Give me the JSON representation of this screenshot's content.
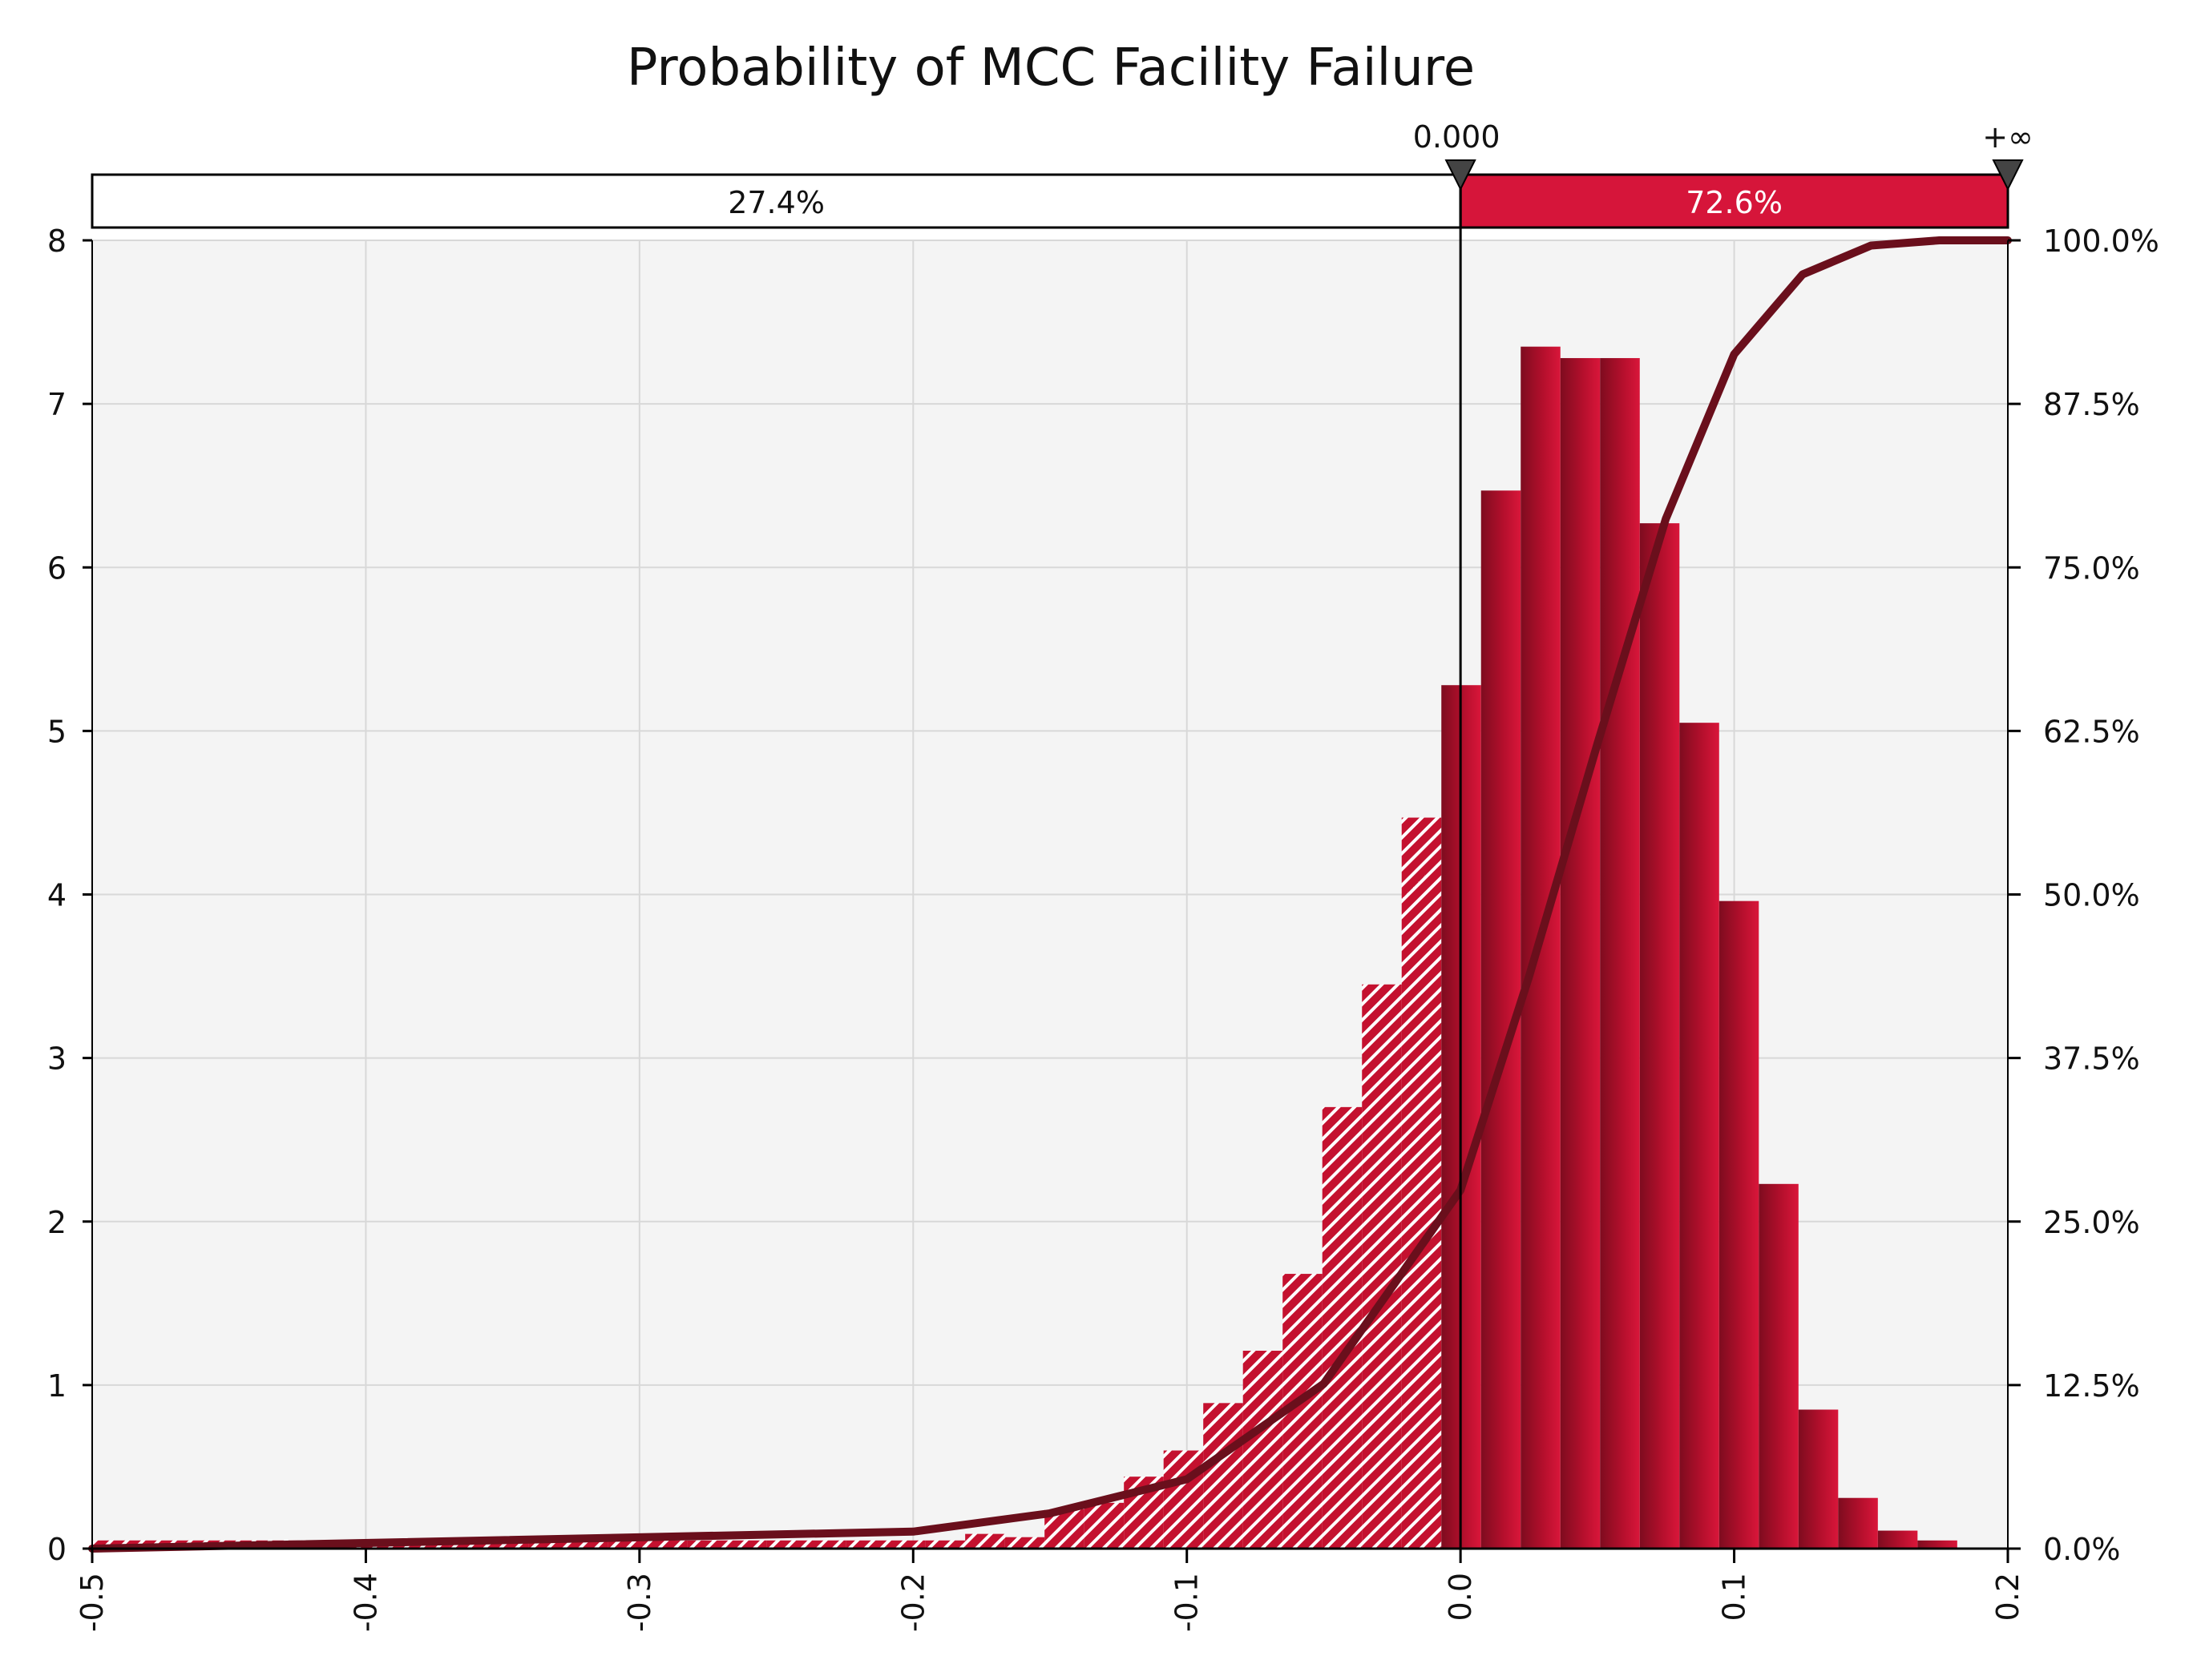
{
  "chart_data": {
    "type": "bar",
    "title": "Probability of MCC Facility Failure",
    "xlabel": "",
    "ylabel": "",
    "xlim": [
      -0.5,
      0.2
    ],
    "ylim": [
      0,
      8
    ],
    "y2lim": [
      0,
      1
    ],
    "grid": true,
    "x_ticks": [
      "-0.5",
      "-0.4",
      "-0.3",
      "-0.2",
      "-0.1",
      "0.0",
      "0.1",
      "0.2"
    ],
    "x_tick_values": [
      -0.5,
      -0.4,
      -0.3,
      -0.2,
      -0.1,
      0.0,
      0.1,
      0.2
    ],
    "y_ticks": [
      "0",
      "1",
      "2",
      "3",
      "4",
      "5",
      "6",
      "7",
      "8"
    ],
    "y_tick_values": [
      0,
      1,
      2,
      3,
      4,
      5,
      6,
      7,
      8
    ],
    "y2_ticks": [
      "0.0%",
      "12.5%",
      "25.0%",
      "37.5%",
      "50.0%",
      "62.5%",
      "75.0%",
      "87.5%",
      "100.0%"
    ],
    "y2_tick_values": [
      0,
      0.125,
      0.25,
      0.375,
      0.5,
      0.625,
      0.75,
      0.875,
      1.0
    ],
    "bin_width": 0.0145,
    "bins": [
      {
        "x": -0.5,
        "value": 0.05
      },
      {
        "x": -0.4855,
        "value": 0.05
      },
      {
        "x": -0.471,
        "value": 0.05
      },
      {
        "x": -0.4565,
        "value": 0.05
      },
      {
        "x": -0.442,
        "value": 0.05
      },
      {
        "x": -0.4275,
        "value": 0.05
      },
      {
        "x": -0.413,
        "value": 0.05
      },
      {
        "x": -0.3985,
        "value": 0.05
      },
      {
        "x": -0.384,
        "value": 0.05
      },
      {
        "x": -0.3695,
        "value": 0.05
      },
      {
        "x": -0.355,
        "value": 0.05
      },
      {
        "x": -0.3405,
        "value": 0.05
      },
      {
        "x": -0.326,
        "value": 0.05
      },
      {
        "x": -0.3115,
        "value": 0.05
      },
      {
        "x": -0.297,
        "value": 0.05
      },
      {
        "x": -0.2825,
        "value": 0.05
      },
      {
        "x": -0.268,
        "value": 0.05
      },
      {
        "x": -0.2535,
        "value": 0.05
      },
      {
        "x": -0.239,
        "value": 0.05
      },
      {
        "x": -0.2245,
        "value": 0.05
      },
      {
        "x": -0.21,
        "value": 0.05
      },
      {
        "x": -0.1955,
        "value": 0.05
      },
      {
        "x": -0.181,
        "value": 0.09
      },
      {
        "x": -0.1665,
        "value": 0.07
      },
      {
        "x": -0.152,
        "value": 0.24
      },
      {
        "x": -0.1375,
        "value": 0.28
      },
      {
        "x": -0.123,
        "value": 0.44
      },
      {
        "x": -0.1085,
        "value": 0.6
      },
      {
        "x": -0.094,
        "value": 0.89
      },
      {
        "x": -0.0795,
        "value": 1.21
      },
      {
        "x": -0.065,
        "value": 1.68
      },
      {
        "x": -0.0505,
        "value": 2.7
      },
      {
        "x": -0.036,
        "value": 3.45
      },
      {
        "x": -0.0215,
        "value": 4.47
      },
      {
        "x": -0.007,
        "value": 5.28
      },
      {
        "x": 0.0075,
        "value": 6.47
      },
      {
        "x": 0.022,
        "value": 7.35
      },
      {
        "x": 0.0365,
        "value": 7.28
      },
      {
        "x": 0.051,
        "value": 7.28
      },
      {
        "x": 0.0655,
        "value": 6.27
      },
      {
        "x": 0.08,
        "value": 5.05
      },
      {
        "x": 0.0945,
        "value": 3.96
      },
      {
        "x": 0.109,
        "value": 2.23
      },
      {
        "x": 0.1235,
        "value": 0.85
      },
      {
        "x": 0.138,
        "value": 0.31
      },
      {
        "x": 0.1525,
        "value": 0.11
      },
      {
        "x": 0.167,
        "value": 0.05
      }
    ],
    "cumulative": {
      "x": [
        -0.5,
        -0.2,
        -0.15,
        -0.1,
        -0.05,
        0.0,
        0.025,
        0.05,
        0.075,
        0.1,
        0.125,
        0.15,
        0.175,
        0.2
      ],
      "values": [
        0.0,
        0.013,
        0.027,
        0.053,
        0.126,
        0.274,
        0.437,
        0.615,
        0.787,
        0.913,
        0.974,
        0.996,
        1.0,
        1.0
      ]
    },
    "delimiter": {
      "left_marker_label": "0.000",
      "right_marker_label": "+∞",
      "left_value": 0.0,
      "left_band_label": "27.4%",
      "right_band_label": "72.6%"
    },
    "colors": {
      "plot_background": "#f4f4f4",
      "grid": "#d8d8d8",
      "bar": "#c8102e",
      "bar_dark": "#8e0f24",
      "bar_highlight": "#e01a3c",
      "curve": "#6a0f1c",
      "band_right": "#d6153a",
      "band_left": "#ffffff"
    }
  }
}
